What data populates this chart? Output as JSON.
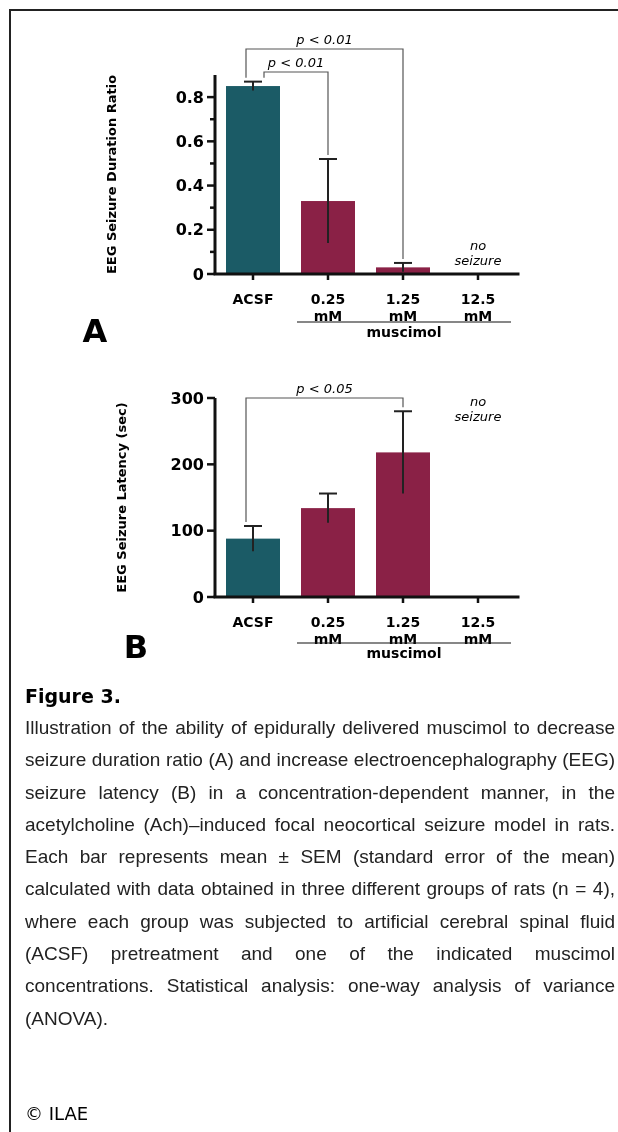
{
  "chart_data": [
    {
      "type": "bar",
      "ylabel": "EEG Seizure Duration Ratio",
      "categories": [
        "ACSF",
        "0.25 mM",
        "1.25 mM",
        "12.5 mM"
      ],
      "values": [
        0.85,
        0.33,
        0.03,
        null
      ],
      "errors": [
        0.02,
        0.19,
        0.02,
        null
      ],
      "colors": [
        "#1b5b66",
        "#8a2146",
        "#8a2146",
        null
      ],
      "ylim": [
        0,
        0.9
      ],
      "yticks": [
        0,
        {
          "value": 0.1,
          "label": null
        },
        0.2,
        {
          "value": 0.3,
          "label": null
        },
        0.4,
        {
          "value": 0.5,
          "label": null
        },
        0.6,
        {
          "value": 0.7,
          "label": null
        },
        0.8
      ],
      "grid": false,
      "annotations": [
        "p < 0.01",
        "p < 0.01",
        "muscimol",
        "A",
        "no seizure"
      ]
    },
    {
      "type": "bar",
      "ylabel": "EEG Seizure Latency (sec)",
      "categories": [
        "ACSF",
        "0.25 mM",
        "1.25 mM",
        "12.5 mM"
      ],
      "values": [
        88,
        134,
        218,
        null
      ],
      "errors": [
        19,
        22,
        62,
        null
      ],
      "colors": [
        "#1b5b66",
        "#8a2146",
        "#8a2146",
        null
      ],
      "ylim": [
        0,
        300
      ],
      "yticks": [
        0,
        100,
        200,
        300
      ],
      "grid": false,
      "annotations": [
        "p < 0.05",
        "muscimol",
        "B",
        "no seizure",
        "Figure 3.",
        "Illustration of the ability of epidurally delivered muscimol to decrease seizure duration ratio (A) and increase electroencephalography (EEG) seizure latency (B) in a concentration-dependent manner, in the acetylcholine (Ach)–induced focal neocortical seizure model in rats. Each bar represents mean ± SEM (standard error of the mean) calculated with data obtained in three different groups of rats (n = 4), where each group was subjected to artificial cerebral spinal fluid (ACSF) pretreatment and one of the indicated muscimol concentrations. Statistical analysis: one-way analysis of variance (ANOVA).",
        "© ILAE"
      ]
    }
  ]
}
